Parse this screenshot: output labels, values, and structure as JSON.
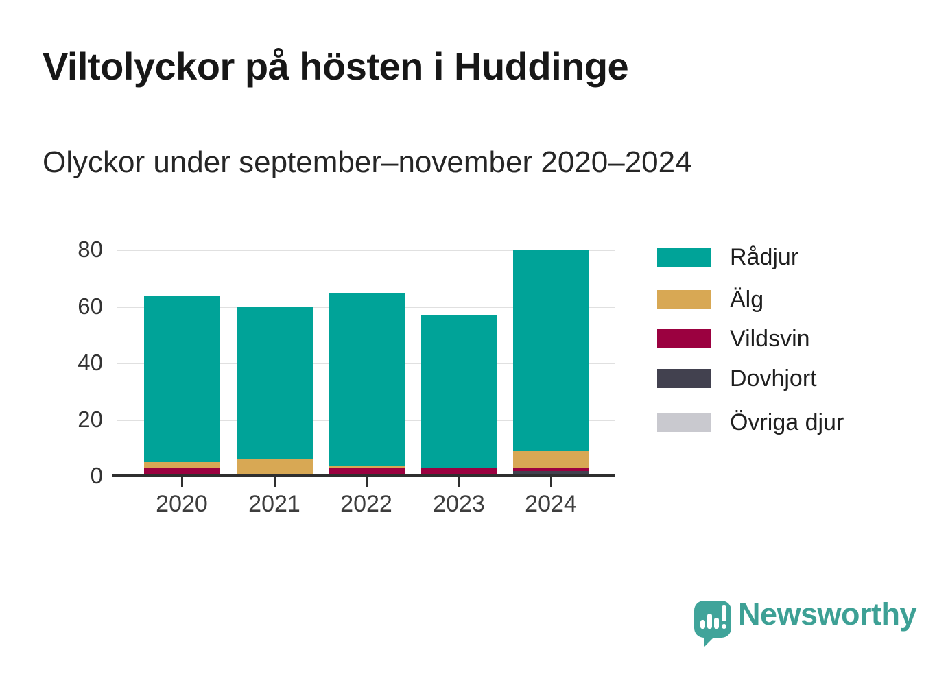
{
  "header": {
    "title": "Viltolyckor på hösten i Huddinge",
    "subtitle": "Olyckor under september–november 2020–2024"
  },
  "chart_data": {
    "type": "bar",
    "stacked": true,
    "categories": [
      "2020",
      "2021",
      "2022",
      "2023",
      "2024"
    ],
    "series": [
      {
        "name": "Rådjur",
        "color": "#00a398",
        "values": [
          59,
          54,
          61,
          54,
          71
        ]
      },
      {
        "name": "Älg",
        "color": "#d8a854",
        "values": [
          2,
          5,
          1,
          0,
          6
        ]
      },
      {
        "name": "Vildsvin",
        "color": "#9b0140",
        "values": [
          3,
          0,
          3,
          3,
          1
        ]
      },
      {
        "name": "Dovhjort",
        "color": "#42414f",
        "values": [
          0,
          0,
          0,
          0,
          2
        ]
      },
      {
        "name": "Övriga djur",
        "color": "#c9c9cf",
        "values": [
          0,
          1,
          0,
          0,
          0
        ]
      }
    ],
    "totals": [
      64,
      60,
      65,
      57,
      80
    ],
    "stack_order_bottom_to_top": [
      "Övriga djur",
      "Dovhjort",
      "Vildsvin",
      "Älg",
      "Rådjur"
    ],
    "title": "Viltolyckor på hösten i Huddinge",
    "xlabel": "",
    "ylabel": "",
    "ylim": [
      0,
      80
    ],
    "yticks": [
      0,
      20,
      40,
      60,
      80
    ],
    "grid": true,
    "legend_position": "right"
  },
  "legend": {
    "entries": [
      "Rådjur",
      "Älg",
      "Vildsvin",
      "Dovhjort",
      "Övriga djur"
    ]
  },
  "colors": {
    "accent_teal": "#00a398",
    "gold": "#d8a854",
    "crimson": "#9b0140",
    "slate": "#42414f",
    "light_gray": "#c9c9cf",
    "axis": "#2f2f2f",
    "gridline": "#e0e0e0",
    "logo_teal": "#3da095"
  },
  "footer": {
    "logo_text": "Newsworthy",
    "logo_icon": "newsworthy-speech-bubble-chart-icon"
  }
}
